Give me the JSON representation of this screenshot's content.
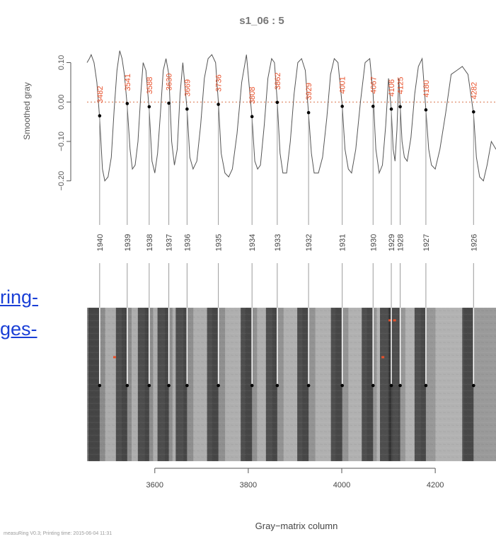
{
  "link_fragments": [
    "ring-",
    "ges-"
  ],
  "footer": "measuRing V0.3; Printing time:   2015-06-04 11:31",
  "colors": {
    "curve": "#555555",
    "label_red": "#e8502a",
    "ref_line": "#d9734a",
    "link": "#1a3fd6",
    "marker": "#000000"
  },
  "chart_data": {
    "type": "line",
    "title": "s1_06 : 5",
    "xlabel": "Gray−matrix column",
    "ylabel": "Smoothed gray",
    "xlim": [
      3455,
      4330
    ],
    "ylim": [
      -0.24,
      0.16
    ],
    "x_ticks": [
      3600,
      3800,
      4000,
      4200
    ],
    "y_ticks": [
      0.1,
      0.0,
      -0.1,
      -0.2
    ],
    "y_tick_labels": [
      "0.10",
      "0.00",
      "−0.10",
      "−0.20"
    ],
    "reference_line_y": 0.0,
    "rings": [
      {
        "col": 3482,
        "year": "1940",
        "gray": -0.035
      },
      {
        "col": 3541,
        "year": "1939",
        "gray": -0.004
      },
      {
        "col": 3588,
        "year": "1938",
        "gray": -0.012
      },
      {
        "col": 3630,
        "year": "1937",
        "gray": -0.003
      },
      {
        "col": 3669,
        "year": "1936",
        "gray": -0.018
      },
      {
        "col": 3736,
        "year": "1935",
        "gray": -0.006
      },
      {
        "col": 3808,
        "year": "1934",
        "gray": -0.037
      },
      {
        "col": 3862,
        "year": "1933",
        "gray": -0.001
      },
      {
        "col": 3929,
        "year": "1932",
        "gray": -0.027
      },
      {
        "col": 4001,
        "year": "1931",
        "gray": -0.011
      },
      {
        "col": 4067,
        "year": "1930",
        "gray": -0.011
      },
      {
        "col": 4106,
        "year": "1929",
        "gray": -0.018
      },
      {
        "col": 4125,
        "year": "1928",
        "gray": -0.012
      },
      {
        "col": 4180,
        "year": "1927",
        "gray": -0.02
      },
      {
        "col": 4282,
        "year": "1926",
        "gray": -0.025
      }
    ],
    "curve": {
      "x": [
        3455,
        3460,
        3464,
        3470,
        3476,
        3482,
        3488,
        3493,
        3500,
        3507,
        3513,
        3519,
        3525,
        3530,
        3535,
        3541,
        3547,
        3552,
        3558,
        3564,
        3570,
        3575,
        3581,
        3588,
        3594,
        3600,
        3606,
        3612,
        3618,
        3624,
        3630,
        3636,
        3642,
        3648,
        3654,
        3660,
        3669,
        3675,
        3682,
        3690,
        3698,
        3706,
        3714,
        3722,
        3730,
        3736,
        3742,
        3750,
        3758,
        3766,
        3776,
        3786,
        3796,
        3808,
        3814,
        3820,
        3826,
        3834,
        3842,
        3850,
        3856,
        3862,
        3868,
        3874,
        3882,
        3890,
        3898,
        3906,
        3914,
        3922,
        3929,
        3935,
        3941,
        3950,
        3959,
        3968,
        3976,
        3984,
        3992,
        4001,
        4007,
        4014,
        4021,
        4030,
        4040,
        4050,
        4060,
        4067,
        4073,
        4080,
        4087,
        4094,
        4100,
        4106,
        4110,
        4114,
        4118,
        4122,
        4125,
        4129,
        4134,
        4140,
        4148,
        4156,
        4164,
        4172,
        4180,
        4186,
        4192,
        4200,
        4210,
        4222,
        4234,
        4246,
        4258,
        4270,
        4282,
        4288,
        4295,
        4303,
        4311,
        4320,
        4330
      ],
      "y": [
        0.1,
        0.11,
        0.12,
        0.1,
        0.05,
        -0.04,
        -0.17,
        -0.2,
        -0.19,
        -0.14,
        -0.02,
        0.08,
        0.13,
        0.11,
        0.07,
        -0.01,
        -0.12,
        -0.17,
        -0.16,
        -0.1,
        0.02,
        0.1,
        0.08,
        -0.02,
        -0.15,
        -0.18,
        -0.13,
        -0.03,
        0.08,
        0.11,
        0.07,
        -0.1,
        -0.16,
        -0.12,
        0.02,
        0.1,
        -0.02,
        -0.14,
        -0.17,
        -0.15,
        -0.06,
        0.06,
        0.11,
        0.12,
        0.1,
        0.0,
        -0.13,
        -0.18,
        -0.19,
        -0.17,
        -0.08,
        0.05,
        0.12,
        -0.04,
        -0.15,
        -0.17,
        -0.16,
        -0.06,
        0.06,
        0.11,
        0.1,
        0.0,
        -0.13,
        -0.18,
        -0.18,
        -0.1,
        0.02,
        0.1,
        0.11,
        0.08,
        -0.03,
        -0.13,
        -0.18,
        -0.18,
        -0.14,
        -0.04,
        0.07,
        0.11,
        0.1,
        -0.01,
        -0.12,
        -0.17,
        -0.18,
        -0.12,
        0.0,
        0.1,
        0.11,
        0.02,
        -0.12,
        -0.18,
        -0.16,
        -0.06,
        0.06,
        -0.02,
        -0.12,
        -0.15,
        -0.07,
        0.06,
        -0.01,
        -0.1,
        -0.14,
        -0.15,
        -0.09,
        0.02,
        0.09,
        0.11,
        -0.02,
        -0.12,
        -0.16,
        -0.17,
        -0.12,
        -0.03,
        0.07,
        0.08,
        0.09,
        0.07,
        -0.03,
        -0.14,
        -0.19,
        -0.2,
        -0.16,
        -0.1,
        -0.12
      ]
    },
    "image_marks": [
      {
        "col": 3514,
        "row_frac": 0.32
      },
      {
        "col": 4103,
        "row_frac": 0.08
      },
      {
        "col": 4113,
        "row_frac": 0.08
      },
      {
        "col": 4088,
        "row_frac": 0.32
      }
    ]
  }
}
